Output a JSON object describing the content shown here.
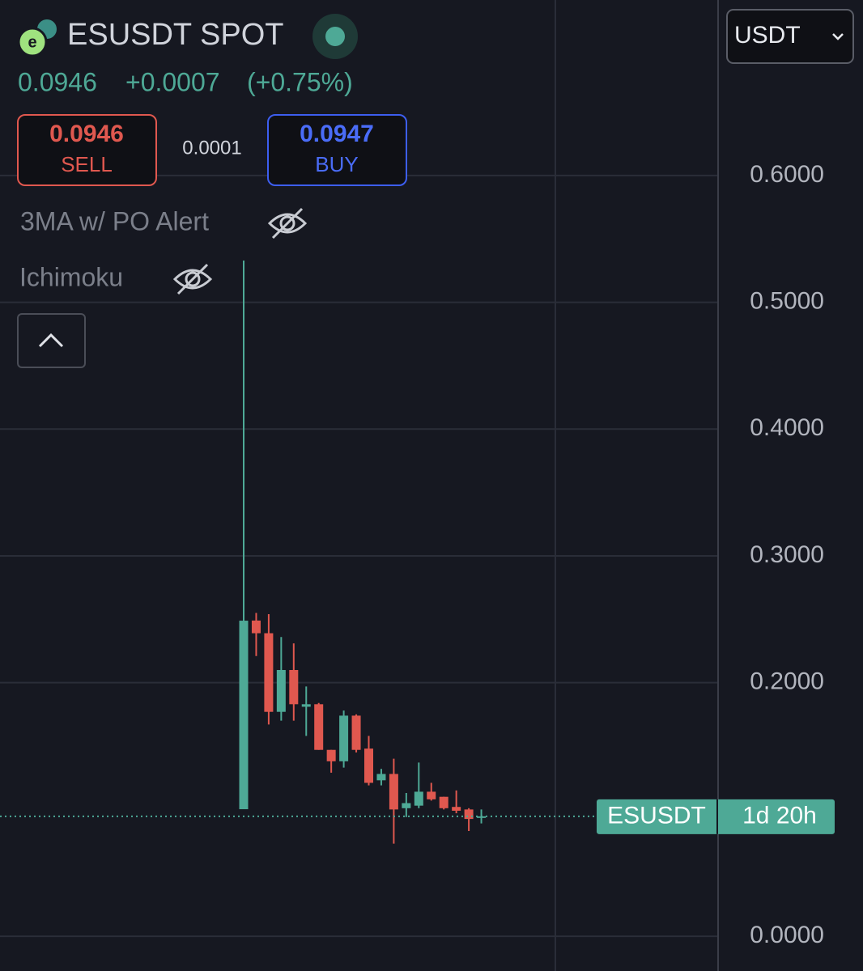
{
  "header": {
    "symbol": "ESUSDT SPOT",
    "price": "0.0946",
    "change": "+0.0007",
    "change_pct": "(+0.75%)",
    "sell_price": "0.0946",
    "sell_label": "SELL",
    "spread": "0.0001",
    "buy_price": "0.0947",
    "buy_label": "BUY",
    "indicators": [
      "3MA w/ PO Alert",
      "Ichimoku"
    ],
    "currency": "USDT"
  },
  "chart_data": {
    "type": "candlestick",
    "categories": [
      null,
      null,
      null,
      null,
      null,
      null,
      null,
      null,
      null,
      null,
      null,
      null,
      null,
      null,
      null,
      null,
      null,
      null,
      null,
      null
    ],
    "open": [
      0.1002,
      0.249,
      0.239,
      0.177,
      0.21,
      0.181,
      0.183,
      0.147,
      0.138,
      0.174,
      0.148,
      0.123,
      0.128,
      0.101,
      0.103,
      0.114,
      0.11,
      0.102,
      0.1,
      0.0935
    ],
    "high": [
      0.5329,
      0.255,
      0.254,
      0.236,
      0.231,
      0.197,
      0.184,
      0.147,
      0.178,
      0.175,
      0.158,
      0.132,
      0.14,
      0.113,
      0.137,
      0.121,
      0.11,
      0.115,
      0.101,
      0.1
    ],
    "low": [
      0.1002,
      0.221,
      0.167,
      0.17,
      0.17,
      0.158,
      0.147,
      0.129,
      0.133,
      0.145,
      0.119,
      0.119,
      0.073,
      0.094,
      0.101,
      0.107,
      0.1,
      0.097,
      0.083,
      0.089
    ],
    "close": [
      0.2489,
      0.239,
      0.177,
      0.21,
      0.183,
      0.183,
      0.147,
      0.138,
      0.174,
      0.147,
      0.121,
      0.128,
      0.1,
      0.105,
      0.114,
      0.108,
      0.101,
      0.099,
      0.0925,
      0.0946
    ],
    "up_color": "#4ea996",
    "down_color": "#e0584f",
    "ylim": [
      -0.0274,
      0.7384
    ],
    "yticks": [
      {
        "value": 0,
        "label": "0.0000"
      },
      {
        "value": 0.2,
        "label": "0.2000"
      },
      {
        "value": 0.3,
        "label": "0.3000"
      },
      {
        "value": 0.4,
        "label": "0.4000"
      },
      {
        "value": 0.5,
        "label": "0.5000"
      },
      {
        "value": 0.6,
        "label": "0.6000"
      }
    ],
    "grid": true,
    "price_label": "ESUSDT",
    "countdown": "1d 20h"
  }
}
